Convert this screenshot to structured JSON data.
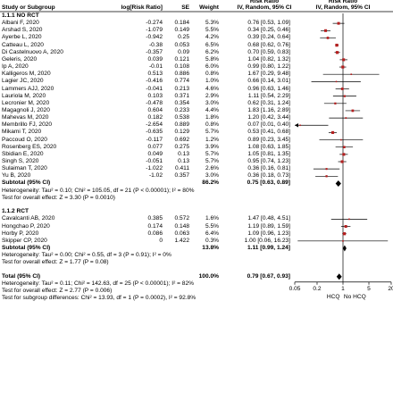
{
  "header": {
    "col_study": "Study or Subgroup",
    "col_logrr": "log[Risk Ratio]",
    "col_se": "SE",
    "col_weight": "Weight",
    "col_rr_top": "Risk Ratio",
    "col_rr_sub": "IV, Random, 95% CI",
    "plot_top": "Risk Ratio",
    "plot_sub": "IV, Random, 95% CI"
  },
  "chart_data": {
    "type": "forest",
    "scale": "log",
    "xlim": [
      0.05,
      20
    ],
    "xticks": [
      {
        "v": 0.05,
        "label": "0.05"
      },
      {
        "v": 0.2,
        "label": "0.2"
      },
      {
        "v": 1,
        "label": "1"
      },
      {
        "v": 5,
        "label": "5"
      },
      {
        "v": 20,
        "label": "20"
      }
    ],
    "favours_left": "HCQ",
    "favours_right": "No HCQ",
    "subgroups": [
      {
        "title": "1.1.1 NO RCT",
        "studies": [
          {
            "name": "Albani F, 2020",
            "logrr": "-0.274",
            "se": "0.184",
            "weight": "5.3%",
            "ci_text": "0.76 [0.53, 1.09]",
            "rr": 0.76,
            "lo": 0.53,
            "hi": 1.09
          },
          {
            "name": "Arshad S, 2020",
            "logrr": "-1.079",
            "se": "0.149",
            "weight": "5.5%",
            "ci_text": "0.34 [0.25, 0.46]",
            "rr": 0.34,
            "lo": 0.25,
            "hi": 0.46
          },
          {
            "name": "Ayerbe L, 2020",
            "logrr": "-0.942",
            "se": "0.25",
            "weight": "4.2%",
            "ci_text": "0.39 [0.24, 0.64]",
            "rr": 0.39,
            "lo": 0.24,
            "hi": 0.64
          },
          {
            "name": "Catteau L, 2020",
            "logrr": "-0.38",
            "se": "0.053",
            "weight": "6.5%",
            "ci_text": "0.68 [0.62, 0.76]",
            "rr": 0.68,
            "lo": 0.62,
            "hi": 0.76
          },
          {
            "name": "Di Castelnuovo A, 2020",
            "logrr": "-0.357",
            "se": "0.09",
            "weight": "6.2%",
            "ci_text": "0.70 [0.59, 0.83]",
            "rr": 0.7,
            "lo": 0.59,
            "hi": 0.83
          },
          {
            "name": "Geleris, 2020",
            "logrr": "0.039",
            "se": "0.121",
            "weight": "5.8%",
            "ci_text": "1.04 [0.82, 1.32]",
            "rr": 1.04,
            "lo": 0.82,
            "hi": 1.32
          },
          {
            "name": "Ip A, 2020",
            "logrr": "-0.01",
            "se": "0.108",
            "weight": "6.0%",
            "ci_text": "0.99 [0.80, 1.22]",
            "rr": 0.99,
            "lo": 0.8,
            "hi": 1.22
          },
          {
            "name": "Kalligeros M, 2020",
            "logrr": "0.513",
            "se": "0.886",
            "weight": "0.8%",
            "ci_text": "1.67 [0.29, 9.48]",
            "rr": 1.67,
            "lo": 0.29,
            "hi": 9.48
          },
          {
            "name": "Lagier JC, 2020",
            "logrr": "-0.416",
            "se": "0.774",
            "weight": "1.0%",
            "ci_text": "0.66 [0.14, 3.01]",
            "rr": 0.66,
            "lo": 0.14,
            "hi": 3.01
          },
          {
            "name": "Lammers AJJ, 2020",
            "logrr": "-0.041",
            "se": "0.213",
            "weight": "4.6%",
            "ci_text": "0.96 [0.63, 1.46]",
            "rr": 0.96,
            "lo": 0.63,
            "hi": 1.46
          },
          {
            "name": "Lauriola M, 2020",
            "logrr": "0.103",
            "se": "0.371",
            "weight": "2.9%",
            "ci_text": "1.11 [0.54, 2.29]",
            "rr": 1.11,
            "lo": 0.54,
            "hi": 2.29
          },
          {
            "name": "Lecronier M, 2020",
            "logrr": "-0.478",
            "se": "0.354",
            "weight": "3.0%",
            "ci_text": "0.62 [0.31, 1.24]",
            "rr": 0.62,
            "lo": 0.31,
            "hi": 1.24
          },
          {
            "name": "Magagnoli J, 2020",
            "logrr": "0.604",
            "se": "0.233",
            "weight": "4.4%",
            "ci_text": "1.83 [1.16, 2.89]",
            "rr": 1.83,
            "lo": 1.16,
            "hi": 2.89
          },
          {
            "name": "Mahevas M, 2020",
            "logrr": "0.182",
            "se": "0.538",
            "weight": "1.8%",
            "ci_text": "1.20 [0.42, 3.44]",
            "rr": 1.2,
            "lo": 0.42,
            "hi": 3.44
          },
          {
            "name": "Membrillo FJ, 2020",
            "logrr": "-2.654",
            "se": "0.889",
            "weight": "0.8%",
            "ci_text": "0.07 [0.01, 0.40]",
            "rr": 0.07,
            "lo": 0.01,
            "hi": 0.4
          },
          {
            "name": "Mikami T, 2020",
            "logrr": "-0.635",
            "se": "0.129",
            "weight": "5.7%",
            "ci_text": "0.53 [0.41, 0.68]",
            "rr": 0.53,
            "lo": 0.41,
            "hi": 0.68
          },
          {
            "name": "Paccoud O, 2020",
            "logrr": "-0.117",
            "se": "0.692",
            "weight": "1.2%",
            "ci_text": "0.89 [0.23, 3.45]",
            "rr": 0.89,
            "lo": 0.23,
            "hi": 3.45
          },
          {
            "name": "Rosenberg ES, 2020",
            "logrr": "0.077",
            "se": "0.275",
            "weight": "3.9%",
            "ci_text": "1.08 [0.63, 1.85]",
            "rr": 1.08,
            "lo": 0.63,
            "hi": 1.85
          },
          {
            "name": "Sbidian E, 2020",
            "logrr": "0.049",
            "se": "0.13",
            "weight": "5.7%",
            "ci_text": "1.05 [0.81, 1.35]",
            "rr": 1.05,
            "lo": 0.81,
            "hi": 1.35
          },
          {
            "name": "Singh S, 2020",
            "logrr": "-0.051",
            "se": "0.13",
            "weight": "5.7%",
            "ci_text": "0.95 [0.74, 1.23]",
            "rr": 0.95,
            "lo": 0.74,
            "hi": 1.23
          },
          {
            "name": "Sulaiman T, 2020",
            "logrr": "-1.022",
            "se": "0.411",
            "weight": "2.6%",
            "ci_text": "0.36 [0.16, 0.81]",
            "rr": 0.36,
            "lo": 0.16,
            "hi": 0.81
          },
          {
            "name": "Yu B, 2020",
            "logrr": "-1.02",
            "se": "0.357",
            "weight": "3.0%",
            "ci_text": "0.36 [0.18, 0.73]",
            "rr": 0.36,
            "lo": 0.18,
            "hi": 0.73
          }
        ],
        "subtotal": {
          "label": "Subtotal (95% CI)",
          "weight": "86.2%",
          "ci_text": "0.75 [0.63, 0.89]",
          "rr": 0.75,
          "lo": 0.63,
          "hi": 0.89
        },
        "heterogeneity": "Heterogeneity: Tau² = 0.10; Chi² = 105.05, df = 21 (P < 0.00001); I² = 80%",
        "overall_effect": "Test for overall effect: Z = 3.30 (P = 0.0010)"
      },
      {
        "title": "1.1.2 RCT",
        "studies": [
          {
            "name": "Cavalcanti AB, 2020",
            "logrr": "0.385",
            "se": "0.572",
            "weight": "1.6%",
            "ci_text": "1.47 [0.48, 4.51]",
            "rr": 1.47,
            "lo": 0.48,
            "hi": 4.51
          },
          {
            "name": "Hongchao P, 2020",
            "logrr": "0.174",
            "se": "0.148",
            "weight": "5.5%",
            "ci_text": "1.19 [0.89, 1.59]",
            "rr": 1.19,
            "lo": 0.89,
            "hi": 1.59
          },
          {
            "name": "Horby P, 2020",
            "logrr": "0.086",
            "se": "0.063",
            "weight": "6.4%",
            "ci_text": "1.09 [0.96, 1.23]",
            "rr": 1.09,
            "lo": 0.96,
            "hi": 1.23
          },
          {
            "name": "Skipper CP, 2020",
            "logrr": "0",
            "se": "1.422",
            "weight": "0.3%",
            "ci_text": "1.00 [0.06, 16.23]",
            "rr": 1.0,
            "lo": 0.06,
            "hi": 16.23
          }
        ],
        "subtotal": {
          "label": "Subtotal (95% CI)",
          "weight": "13.8%",
          "ci_text": "1.11 [0.99, 1.24]",
          "rr": 1.11,
          "lo": 0.99,
          "hi": 1.24
        },
        "heterogeneity": "Heterogeneity: Tau² = 0.00; Chi² = 0.55, df = 3 (P = 0.91); I² = 0%",
        "overall_effect": "Test for overall effect: Z = 1.77 (P = 0.08)"
      }
    ],
    "total": {
      "label": "Total (95% CI)",
      "weight": "100.0%",
      "ci_text": "0.79 [0.67, 0.93]",
      "rr": 0.79,
      "lo": 0.67,
      "hi": 0.93
    },
    "total_heterogeneity": "Heterogeneity: Tau² = 0.11; Chi² = 142.63, df = 25 (P < 0.00001); I² = 82%",
    "total_overall_effect": "Test for overall effect: Z = 2.77 (P = 0.006)",
    "subgroup_differences": "Test for subgroup differences: Chi² = 13.93, df = 1 (P = 0.0002), I² = 92.8%"
  },
  "colors": {
    "marker": "#b41e1e",
    "line": "#000000",
    "header_rule": "#000000"
  }
}
